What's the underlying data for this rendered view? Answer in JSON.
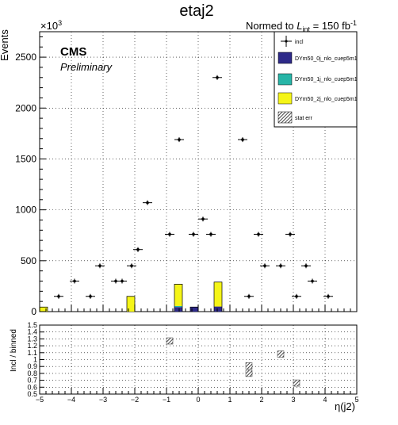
{
  "header": {
    "title": "etaj2",
    "lumi_prefix": "Normed to ",
    "lumi_symbol": "L",
    "lumi_sub": "int",
    "lumi_value": " = 150 fb",
    "lumi_exp": "-1"
  },
  "labels": {
    "cms": "CMS",
    "preliminary": "Preliminary",
    "exponent_base": "×10",
    "exponent_power": "3"
  },
  "legend": {
    "items": [
      {
        "label": "incl",
        "kind": "points"
      },
      {
        "label": "DYm50_0j_nlo_cuep5m1",
        "kind": "fill",
        "color": "#2e2a89"
      },
      {
        "label": "DYm50_1j_nlo_cuep5m1",
        "kind": "fill",
        "color": "#27b5a7"
      },
      {
        "label": "DYm50_2j_nlo_cuep5m1",
        "kind": "fill",
        "color": "#f5f518"
      },
      {
        "label": "stat err",
        "kind": "hatch"
      }
    ]
  },
  "chart_data": [
    {
      "type": "bar",
      "stacked": true,
      "title": "etaj2",
      "xlabel": "η(j2)",
      "ylabel": "Events",
      "xlim": [
        -5,
        5
      ],
      "ylim": [
        0,
        2750
      ],
      "y_scale_note": "×10^3",
      "grid": true,
      "legend_position": "top-right",
      "x_ticks": [
        "−5",
        "−4",
        "−3",
        "−2",
        "−1",
        "0",
        "1",
        "2",
        "3",
        "4",
        "5"
      ],
      "y_ticks": [
        "0",
        "500",
        "1000",
        "1500",
        "2000",
        "2500"
      ],
      "bin_edges": [
        -5.0,
        -4.75,
        -4.5,
        -4.25,
        -4.0,
        -3.75,
        -3.5,
        -3.25,
        -3.0,
        -2.75,
        -2.5,
        -2.25,
        -2.0,
        -1.75,
        -1.5,
        -1.25,
        -1.0,
        -0.75,
        -0.5,
        -0.25,
        0.0,
        0.25,
        0.5,
        0.75,
        1.0,
        1.25,
        1.5,
        1.75,
        2.0,
        2.25,
        2.5,
        2.75,
        3.0,
        3.25,
        3.5,
        3.75,
        4.0,
        4.25,
        4.5,
        4.75,
        5.0
      ],
      "series": [
        {
          "name": "DYm50_0j_nlo_cuep5m1",
          "color": "#2e2a89",
          "values": [
            0,
            0,
            0,
            0,
            0,
            0,
            0,
            0,
            0,
            0,
            0,
            0,
            0,
            0,
            0,
            0,
            0,
            45,
            0,
            45,
            0,
            0,
            50,
            0,
            0,
            0,
            0,
            0,
            0,
            0,
            0,
            0,
            0,
            0,
            0,
            0,
            0,
            0,
            0,
            0
          ]
        },
        {
          "name": "DYm50_1j_nlo_cuep5m1",
          "color": "#27b5a7",
          "values": [
            0,
            0,
            0,
            0,
            0,
            0,
            0,
            0,
            0,
            0,
            0,
            0,
            0,
            0,
            0,
            0,
            0,
            10,
            0,
            0,
            0,
            0,
            0,
            0,
            0,
            0,
            0,
            0,
            0,
            0,
            0,
            0,
            0,
            0,
            0,
            0,
            0,
            0,
            0,
            0
          ]
        },
        {
          "name": "DYm50_2j_nlo_cuep5m1",
          "color": "#f5f518",
          "values": [
            45,
            0,
            0,
            0,
            0,
            0,
            0,
            0,
            0,
            0,
            0,
            150,
            0,
            0,
            0,
            0,
            0,
            215,
            0,
            0,
            0,
            0,
            240,
            0,
            0,
            0,
            0,
            0,
            0,
            0,
            0,
            0,
            0,
            0,
            0,
            0,
            0,
            0,
            0,
            0
          ]
        }
      ],
      "stack_totals": [
        45,
        0,
        0,
        0,
        0,
        0,
        0,
        0,
        0,
        0,
        0,
        150,
        0,
        0,
        0,
        0,
        0,
        270,
        0,
        45,
        0,
        0,
        290,
        0,
        0,
        0,
        0,
        0,
        0,
        0,
        0,
        0,
        0,
        0,
        0,
        0,
        0,
        0,
        0,
        0
      ],
      "points_name": "incl",
      "points": [
        {
          "x": -4.4,
          "y": 150
        },
        {
          "x": -3.9,
          "y": 300
        },
        {
          "x": -3.4,
          "y": 150
        },
        {
          "x": -3.1,
          "y": 450
        },
        {
          "x": -2.6,
          "y": 300
        },
        {
          "x": -2.4,
          "y": 300
        },
        {
          "x": -2.1,
          "y": 450
        },
        {
          "x": -1.9,
          "y": 610
        },
        {
          "x": -1.6,
          "y": 1070
        },
        {
          "x": -0.9,
          "y": 760
        },
        {
          "x": -0.6,
          "y": 1690
        },
        {
          "x": -0.15,
          "y": 760
        },
        {
          "x": 0.15,
          "y": 910
        },
        {
          "x": 0.4,
          "y": 760
        },
        {
          "x": 0.6,
          "y": 2300
        },
        {
          "x": 1.4,
          "y": 1690
        },
        {
          "x": 1.6,
          "y": 150
        },
        {
          "x": 1.9,
          "y": 760
        },
        {
          "x": 2.1,
          "y": 450
        },
        {
          "x": 2.6,
          "y": 450
        },
        {
          "x": 2.9,
          "y": 760
        },
        {
          "x": 3.1,
          "y": 150
        },
        {
          "x": 3.4,
          "y": 450
        },
        {
          "x": 3.6,
          "y": 300
        },
        {
          "x": 4.1,
          "y": 150
        }
      ]
    },
    {
      "type": "scatter",
      "xlabel": "η(j2)",
      "ylabel": "Incl / binned",
      "xlim": [
        -5,
        5
      ],
      "ylim": [
        0.5,
        1.5
      ],
      "grid": true,
      "x_ticks": [
        "−5",
        "−4",
        "−3",
        "−2",
        "−1",
        "0",
        "1",
        "2",
        "3",
        "4",
        "5"
      ],
      "y_ticks": [
        "0.5",
        "0.6",
        "0.7",
        "0.8",
        "0.9",
        "1",
        "1.1",
        "1.2",
        "1.3",
        "1.4",
        "1.5"
      ],
      "points": [
        {
          "x": -0.9,
          "y": 1.27
        },
        {
          "x": 1.6,
          "y": 0.91
        },
        {
          "x": 1.6,
          "y": 0.8
        },
        {
          "x": 2.6,
          "y": 1.08
        },
        {
          "x": 3.1,
          "y": 0.66
        }
      ]
    }
  ]
}
